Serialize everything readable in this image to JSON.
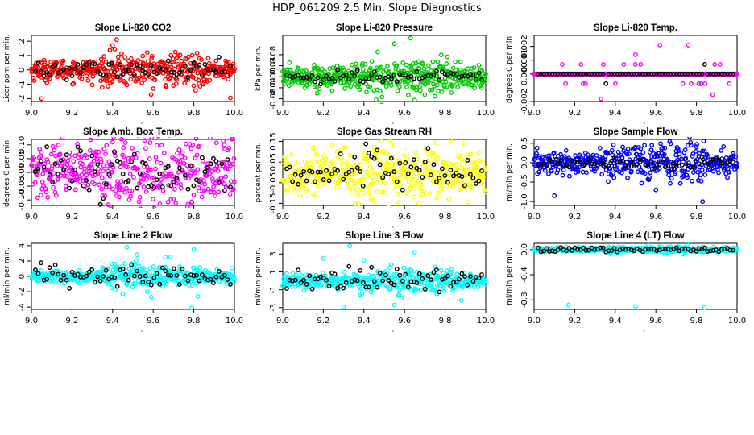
{
  "main_title": "HDP_061209  2.5 Min. Slope Diagnostics",
  "chart_data": [
    {
      "type": "scatter",
      "title": "Slope Li-820 CO2",
      "ylabel": "Licor ppm per min.",
      "color": "#ff0000",
      "xlim": [
        9.0,
        10.0
      ],
      "xticks": [
        "9.0",
        "9.2",
        "9.4",
        "9.6",
        "9.8",
        "10.0"
      ],
      "ylim": [
        -2.2,
        2.4
      ],
      "yticks": [
        {
          "v": -2,
          "label": "-2"
        },
        {
          "v": -1,
          "label": "-1"
        },
        {
          "v": 0,
          "label": "0"
        },
        {
          "v": 1,
          "label": "1"
        },
        {
          "v": 2,
          "label": "2"
        }
      ],
      "spread": 0.35,
      "black_spread": 0.3,
      "outliers": [
        [
          9.42,
          2.1
        ],
        [
          9.4,
          1.7
        ],
        [
          9.05,
          -2.0
        ],
        [
          9.98,
          -1.95
        ],
        [
          9.6,
          -1.3
        ],
        [
          9.3,
          -1.05
        ],
        [
          9.8,
          -1.1
        ]
      ]
    },
    {
      "type": "scatter",
      "title": "Slope Li-820 Pressure",
      "ylabel": "kPa per min.",
      "color": "#00cc00",
      "xlim": [
        9.0,
        10.0
      ],
      "xticks": [
        "9.0",
        "9.2",
        "9.4",
        "9.6",
        "9.8",
        "10.0"
      ],
      "ylim": [
        -0.09,
        0.15
      ],
      "yticks": [
        {
          "v": -0.08,
          "label": "-0.08"
        },
        {
          "v": -0.04,
          "label": "-0.04"
        },
        {
          "v": 0,
          "label": "0.00"
        },
        {
          "v": 0.04,
          "label": "0.04"
        },
        {
          "v": 0.08,
          "label": "0.08"
        }
      ],
      "spread": 0.02,
      "black_spread": 0.012,
      "outliers": [
        [
          9.63,
          0.14
        ],
        [
          9.55,
          0.12
        ],
        [
          9.65,
          -0.085
        ],
        [
          9.7,
          -0.065
        ],
        [
          9.45,
          -0.05
        ],
        [
          9.98,
          -0.04
        ]
      ]
    },
    {
      "type": "scatter",
      "title": "Slope Li-820 Temp.",
      "ylabel": "degrees C per min.",
      "color": "#ff00ff",
      "xlim": [
        9.0,
        10.0
      ],
      "xticks": [
        "9.0",
        "9.2",
        "9.4",
        "9.6",
        "9.8",
        "10.0"
      ],
      "ylim": [
        -0.002,
        0.0028
      ],
      "yticks": [
        {
          "v": -0.002,
          "label": "-0.002"
        },
        {
          "v": 0,
          "label": "0.000"
        },
        {
          "v": 0.001,
          "label": "0.001"
        },
        {
          "v": 0.002,
          "label": "0.002"
        }
      ],
      "mode": "quantized",
      "step": 0.0007,
      "outliers": [
        [
          9.33,
          -0.0018
        ],
        [
          9.88,
          -0.0015
        ],
        [
          9.5,
          0.0014
        ],
        [
          9.76,
          0.0021
        ],
        [
          9.62,
          0.0021
        ]
      ]
    },
    {
      "type": "scatter",
      "title": "Slope Amb. Box Temp.",
      "ylabel": "degrees C per min.",
      "color": "#ff00ff",
      "xlim": [
        9.0,
        10.0
      ],
      "xticks": [
        "9.0",
        "9.2",
        "9.4",
        "9.6",
        "9.8",
        "10.0"
      ],
      "ylim": [
        -0.12,
        0.12
      ],
      "yticks": [
        {
          "v": -0.1,
          "label": "-0.10"
        },
        {
          "v": -0.05,
          "label": "-0.05"
        },
        {
          "v": 0,
          "label": "0.00"
        },
        {
          "v": 0.05,
          "label": "0.05"
        },
        {
          "v": 0.1,
          "label": "0.10"
        }
      ],
      "spread": 0.05,
      "black_spread": 0.05,
      "outliers": [
        [
          9.4,
          0.11
        ],
        [
          9.79,
          -0.11
        ],
        [
          9.95,
          0.1
        ],
        [
          9.08,
          -0.09
        ]
      ]
    },
    {
      "type": "scatter",
      "title": "Slope Gas Stream RH",
      "ylabel": "percent per min.",
      "color": "#ffff00",
      "xlim": [
        9.0,
        10.0
      ],
      "xticks": [
        "9.0",
        "9.2",
        "9.4",
        "9.6",
        "9.8",
        "10.0"
      ],
      "ylim": [
        -0.16,
        0.16
      ],
      "yticks": [
        {
          "v": -0.15,
          "label": "-0.15"
        },
        {
          "v": -0.05,
          "label": "-0.05"
        },
        {
          "v": 0.05,
          "label": "0.05"
        },
        {
          "v": 0.15,
          "label": "0.15"
        }
      ],
      "spread": 0.05,
      "black_spread": 0.05,
      "outliers": [
        [
          9.67,
          -0.15
        ],
        [
          9.45,
          -0.14
        ],
        [
          9.55,
          0.13
        ],
        [
          9.3,
          0.12
        ]
      ]
    },
    {
      "type": "scatter",
      "title": "Slope Sample Flow",
      "ylabel": "ml/min per min.",
      "color": "#0000ff",
      "xlim": [
        9.0,
        10.0
      ],
      "xticks": [
        "9.0",
        "9.2",
        "9.4",
        "9.6",
        "9.8",
        "10.0"
      ],
      "ylim": [
        -1.1,
        0.6
      ],
      "yticks": [
        {
          "v": -1,
          "label": "-1.0"
        },
        {
          "v": -0.5,
          "label": "-0.5"
        },
        {
          "v": 0,
          "label": "0.0"
        },
        {
          "v": 0.5,
          "label": "0.5"
        }
      ],
      "spread": 0.15,
      "black_spread": 0.08,
      "outliers": [
        [
          9.83,
          -1.0
        ],
        [
          9.1,
          -0.85
        ],
        [
          9.58,
          0.45
        ],
        [
          9.6,
          -0.7
        ],
        [
          9.7,
          0.3
        ]
      ]
    },
    {
      "type": "scatter",
      "title": "Slope Line 2 Flow",
      "ylabel": "ml/min per min.",
      "color": "#00ffff",
      "xlim": [
        9.0,
        10.0
      ],
      "xticks": [
        "9.0",
        "9.2",
        "9.4",
        "9.6",
        "9.8",
        "10.0"
      ],
      "ylim": [
        -4.3,
        4.3
      ],
      "yticks": [
        {
          "v": -4,
          "label": "-4"
        },
        {
          "v": -2,
          "label": "-2"
        },
        {
          "v": 0,
          "label": "0"
        },
        {
          "v": 2,
          "label": "2"
        },
        {
          "v": 4,
          "label": "4"
        }
      ],
      "spread": 0.4,
      "black_spread": 0.7,
      "outliers": [
        [
          9.79,
          -4.1
        ],
        [
          9.8,
          3.5
        ],
        [
          9.47,
          3.8
        ],
        [
          9.52,
          2.8
        ],
        [
          9.66,
          2.5
        ],
        [
          9.45,
          -2.3
        ],
        [
          9.82,
          -2.6
        ]
      ]
    },
    {
      "type": "scatter",
      "title": "Slope Line 3 Flow",
      "ylabel": "ml/min per min.",
      "color": "#00ffff",
      "xlim": [
        9.0,
        10.0
      ],
      "xticks": [
        "9.0",
        "9.2",
        "9.4",
        "9.6",
        "9.8",
        "10.0"
      ],
      "ylim": [
        -3.2,
        4.2
      ],
      "yticks": [
        {
          "v": -3,
          "label": "-3"
        },
        {
          "v": -1,
          "label": "-1"
        },
        {
          "v": 1,
          "label": "1"
        },
        {
          "v": 3,
          "label": "3"
        }
      ],
      "spread": 0.4,
      "black_spread": 0.6,
      "outliers": [
        [
          9.33,
          3.9
        ],
        [
          9.3,
          -2.9
        ],
        [
          9.55,
          -2.7
        ],
        [
          9.65,
          3.2
        ],
        [
          9.88,
          -2.2
        ],
        [
          9.2,
          2.5
        ],
        [
          9.4,
          2.3
        ]
      ]
    },
    {
      "type": "scatter",
      "title": "Slope Line 4 (LT) Flow",
      "ylabel": "ml/min per min.",
      "color": "#00ffff",
      "xlim": [
        9.0,
        10.0
      ],
      "xticks": [
        "9.0",
        "9.2",
        "9.4",
        "9.6",
        "9.8",
        "10.0"
      ],
      "ylim": [
        -0.95,
        0.1
      ],
      "yticks": [
        {
          "v": -0.8,
          "label": "-0.8"
        },
        {
          "v": -0.4,
          "label": "-0.4"
        },
        {
          "v": 0,
          "label": "0.0"
        }
      ],
      "spread": 0.015,
      "black_spread": 0.02,
      "outliers": [
        [
          9.17,
          -0.88
        ],
        [
          9.5,
          -0.9
        ],
        [
          9.84,
          -0.92
        ]
      ]
    }
  ]
}
